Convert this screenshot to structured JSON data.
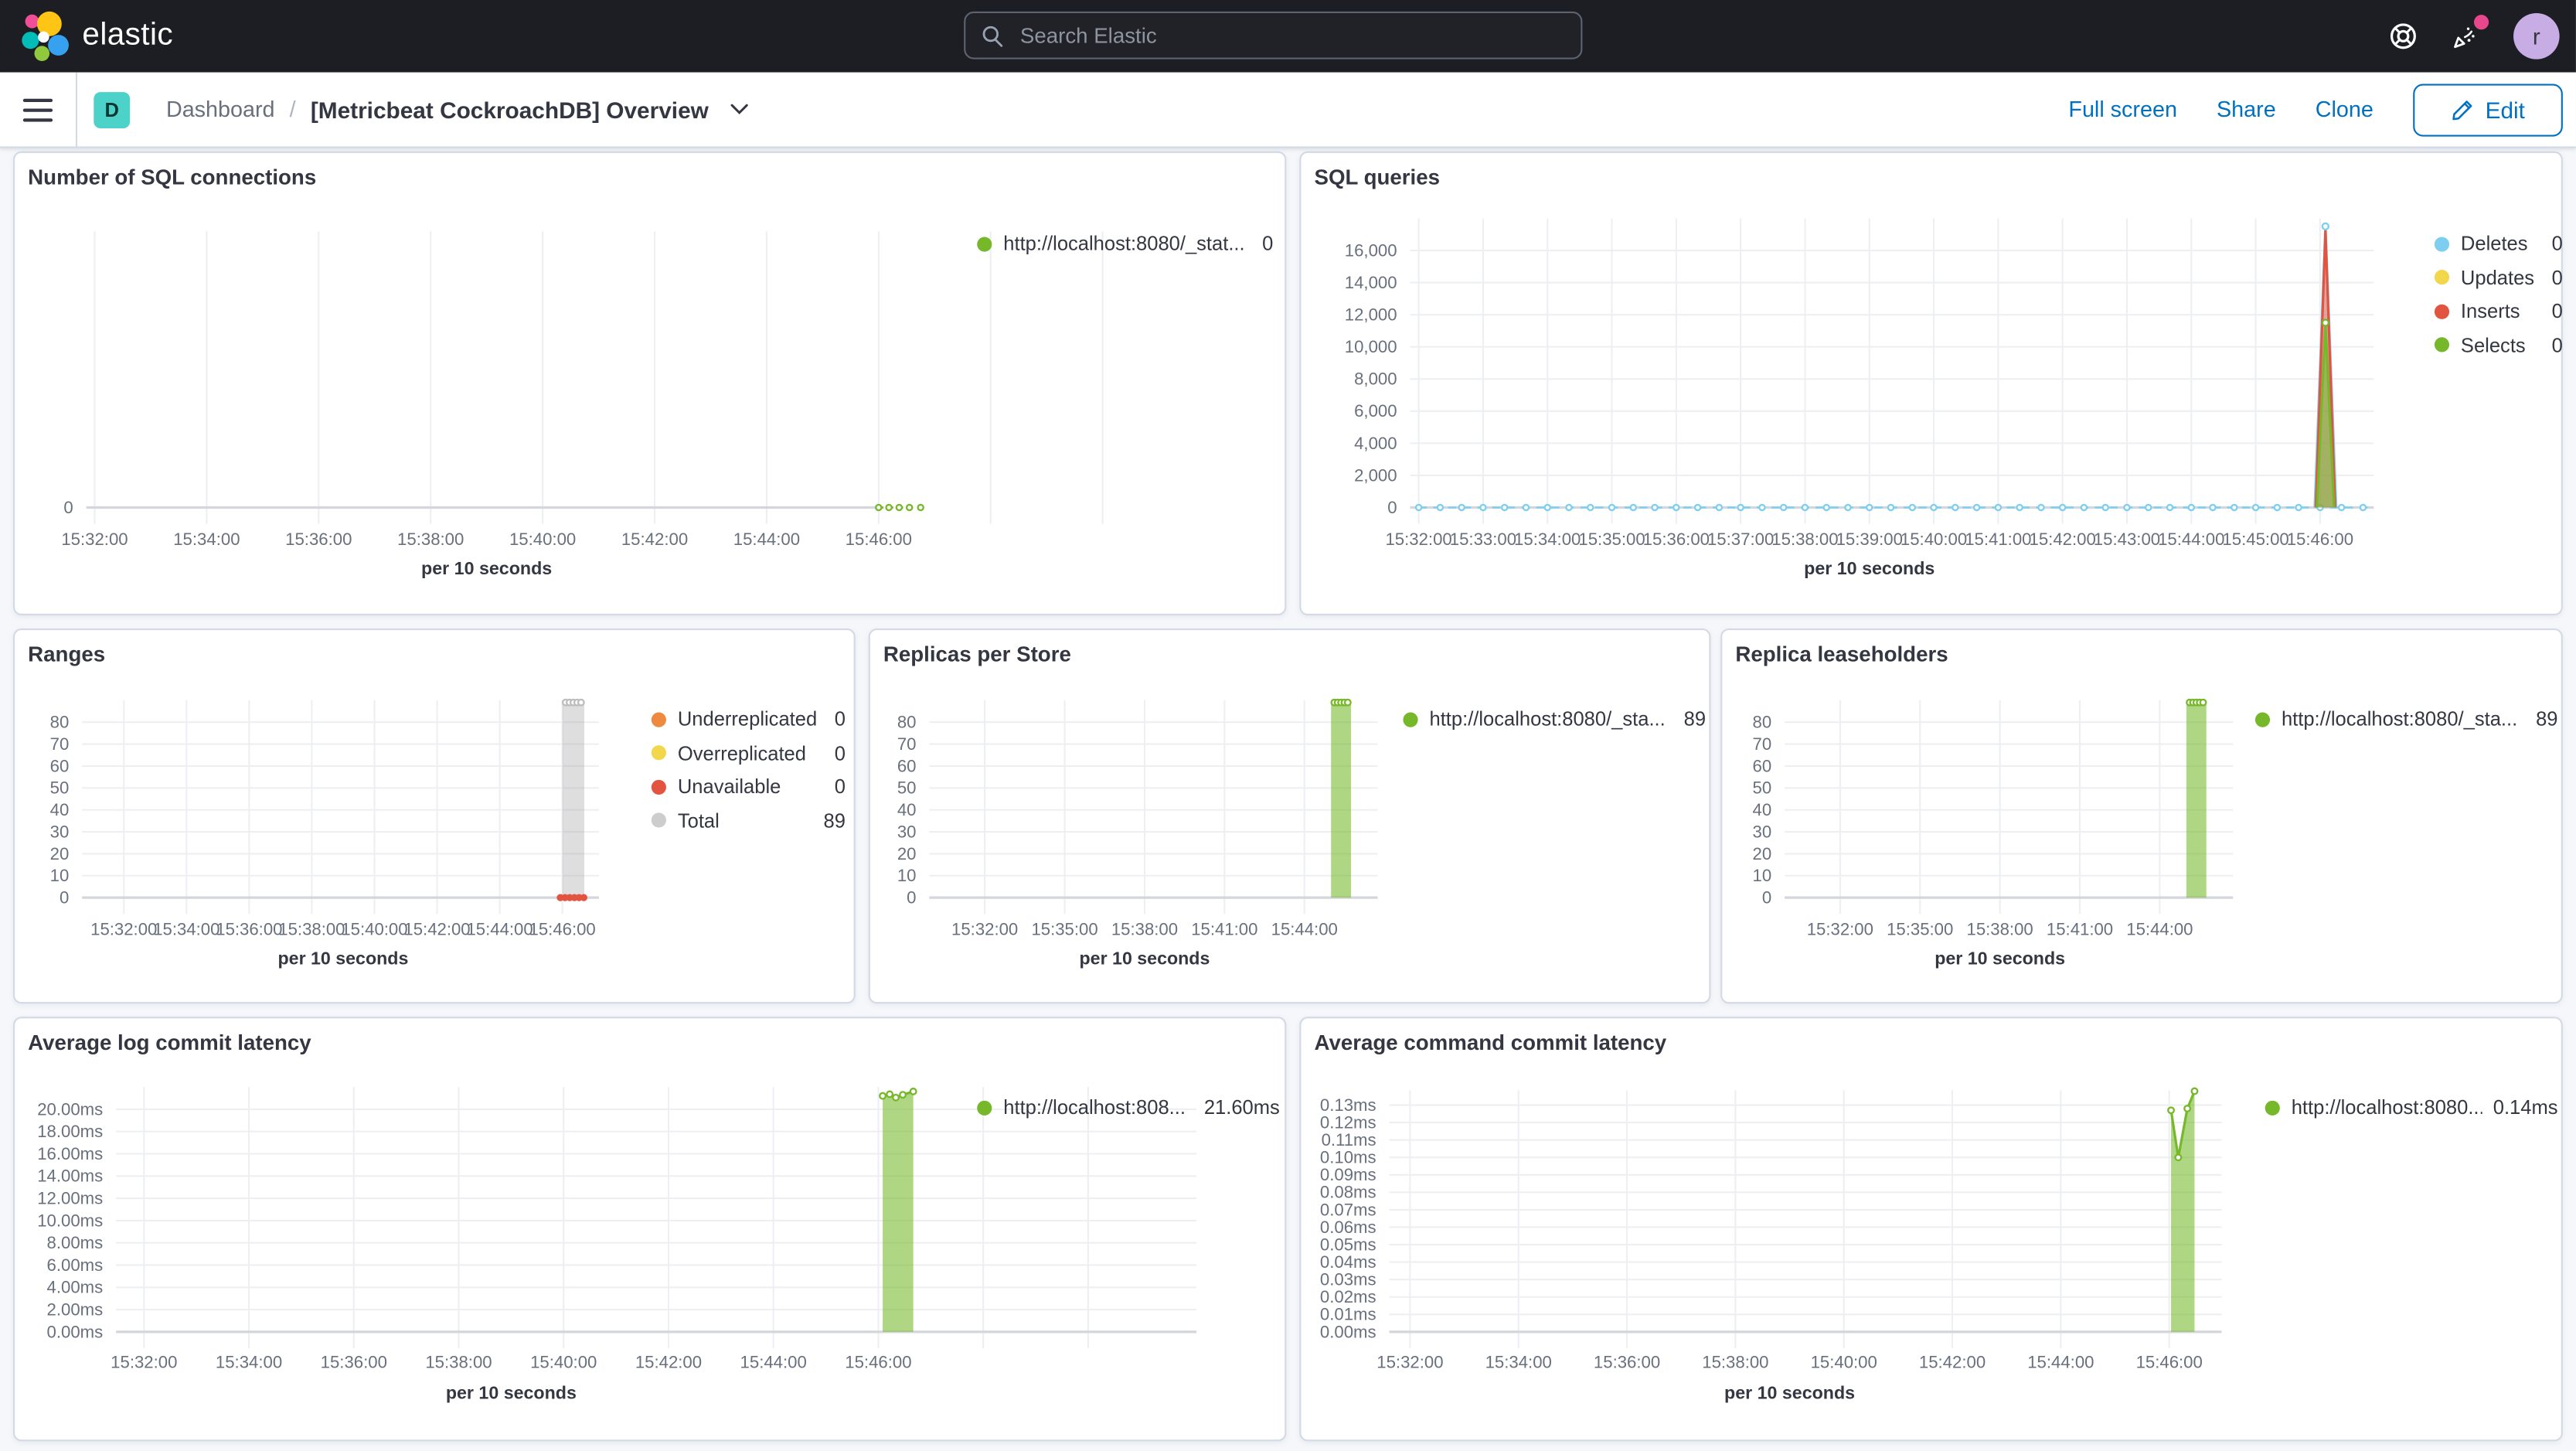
{
  "page": {
    "header": {
      "logo_text": "elastic",
      "search_placeholder": "Search Elastic",
      "avatar_initial": "r"
    },
    "toolbar": {
      "space_initial": "D",
      "breadcrumb_root": "Dashboard",
      "breadcrumb_separator": "/",
      "title": "[Metricbeat CockroachDB] Overview",
      "full_screen": "Full screen",
      "share": "Share",
      "clone": "Clone",
      "edit": "Edit"
    }
  },
  "chart_data": [
    {
      "type": "line",
      "title": "Number of SQL connections",
      "xlabel": "per 10 seconds",
      "x_domain": [
        "15:31:51",
        "15:51:41"
      ],
      "x_ticks": [
        "15:32:00",
        "15:34:00",
        "15:36:00",
        "15:38:00",
        "15:40:00",
        "15:42:00",
        "15:44:00",
        "15:46:00"
      ],
      "x_grid_extra": [
        "15:48:00",
        "15:50:00"
      ],
      "axis_line_to": "15:46:00",
      "y_domain": [
        0,
        1
      ],
      "y_ticks": [
        {
          "v": 0,
          "label": "0"
        }
      ],
      "series": [
        {
          "name": "http://localhost:8080/_stat...",
          "type": "dotline",
          "color": "#76b82a",
          "value": 0,
          "points": [
            [
              "15:46:00",
              0
            ],
            [
              "15:46:11",
              0
            ],
            [
              "15:46:22",
              0
            ],
            [
              "15:46:33",
              0
            ],
            [
              "15:46:45",
              0
            ]
          ]
        }
      ],
      "legend": [
        {
          "color": "#76b82a",
          "label": "http://localhost:8080/_stat...",
          "value": "0"
        }
      ]
    },
    {
      "type": "area",
      "title": "SQL queries",
      "xlabel": "per 10 seconds",
      "x_domain": [
        "15:31:52",
        "15:46:50"
      ],
      "x_ticks": [
        "15:32:00",
        "15:33:00",
        "15:34:00",
        "15:35:00",
        "15:36:00",
        "15:37:00",
        "15:38:00",
        "15:39:00",
        "15:40:00",
        "15:41:00",
        "15:42:00",
        "15:43:00",
        "15:44:00",
        "15:45:00",
        "15:46:00"
      ],
      "y_domain": [
        0,
        18000
      ],
      "y_ticks": [
        {
          "v": 0,
          "label": "0"
        },
        {
          "v": 2000,
          "label": "2,000"
        },
        {
          "v": 4000,
          "label": "4,000"
        },
        {
          "v": 6000,
          "label": "6,000"
        },
        {
          "v": 8000,
          "label": "8,000"
        },
        {
          "v": 10000,
          "label": "10,000"
        },
        {
          "v": 12000,
          "label": "12,000"
        },
        {
          "v": 14000,
          "label": "14,000"
        },
        {
          "v": 16000,
          "label": "16,000"
        }
      ],
      "series": [
        {
          "name": "Deletes",
          "type": "area",
          "color": "#7dcef0",
          "fill": "rgba(125,206,240,0.35)",
          "value": 0,
          "baseline": {
            "from": "15:32:00",
            "to": "15:46:45",
            "every": 20
          },
          "points": [
            [
              "15:45:55",
              0
            ],
            [
              "15:46:05",
              17500
            ],
            [
              "15:46:15",
              0
            ]
          ],
          "peak_marker": true
        },
        {
          "name": "Inserts",
          "type": "area",
          "color": "#e35440",
          "fill": "rgba(227,84,64,0.45)",
          "value": 0,
          "points": [
            [
              "15:45:56",
              0
            ],
            [
              "15:46:05",
              17250
            ],
            [
              "15:46:14",
              0
            ]
          ]
        },
        {
          "name": "Selects",
          "type": "area",
          "color": "#76b82a",
          "fill": "rgba(118,184,42,0.55)",
          "value": 0,
          "points": [
            [
              "15:45:57",
              0
            ],
            [
              "15:46:05",
              11500
            ],
            [
              "15:46:13",
              0
            ]
          ],
          "peak_marker": true
        },
        {
          "name": "Updates",
          "type": "line",
          "color": "#f2d64b",
          "value": 0,
          "points": []
        }
      ],
      "legend": [
        {
          "color": "#7dcef0",
          "label": "Deletes",
          "value": "0"
        },
        {
          "color": "#f2d64b",
          "label": "Updates",
          "value": "0"
        },
        {
          "color": "#e35440",
          "label": "Inserts",
          "value": "0"
        },
        {
          "color": "#76b82a",
          "label": "Selects",
          "value": "0"
        }
      ]
    },
    {
      "type": "bar",
      "title": "Ranges",
      "xlabel": "per 10 seconds",
      "x_domain": [
        "15:30:40",
        "15:47:10"
      ],
      "x_ticks": [
        "15:32:00",
        "15:34:00",
        "15:36:00",
        "15:38:00",
        "15:40:00",
        "15:42:00",
        "15:44:00",
        "15:46:00"
      ],
      "y_domain": [
        0,
        90
      ],
      "y_ticks": [
        {
          "v": 0,
          "label": "0"
        },
        {
          "v": 10,
          "label": "10"
        },
        {
          "v": 20,
          "label": "20"
        },
        {
          "v": 30,
          "label": "30"
        },
        {
          "v": 40,
          "label": "40"
        },
        {
          "v": 50,
          "label": "50"
        },
        {
          "v": 60,
          "label": "60"
        },
        {
          "v": 70,
          "label": "70"
        },
        {
          "v": 80,
          "label": "80"
        }
      ],
      "series": [
        {
          "name": "Total",
          "type": "bar",
          "color": "rgba(160,160,160,0.35)",
          "marker_color": "#bdbdbd",
          "from": "15:46:00",
          "to": "15:46:42",
          "value": 89,
          "top_markers": 5
        },
        {
          "name": "Unavailable",
          "type": "dots",
          "color": "#e35440",
          "value": 0,
          "points": [
            [
              "15:45:56",
              0
            ],
            [
              "15:46:05",
              0
            ],
            [
              "15:46:14",
              0
            ],
            [
              "15:46:23",
              0
            ],
            [
              "15:46:32",
              0
            ],
            [
              "15:46:41",
              0
            ]
          ]
        },
        {
          "name": "Underreplicated",
          "type": "line",
          "color": "#ee8a3d",
          "value": 0,
          "points": []
        },
        {
          "name": "Overreplicated",
          "type": "line",
          "color": "#f2d64b",
          "value": 0,
          "points": []
        }
      ],
      "legend": [
        {
          "color": "#ee8a3d",
          "label": "Underreplicated",
          "value": "0"
        },
        {
          "color": "#f2d64b",
          "label": "Overreplicated",
          "value": "0"
        },
        {
          "color": "#e35440",
          "label": "Unavailable",
          "value": "0"
        },
        {
          "color": "#cdcdcd",
          "label": "Total",
          "value": "89"
        }
      ]
    },
    {
      "type": "bar",
      "title": "Replicas per Store",
      "xlabel": "per 10 seconds",
      "x_domain": [
        "15:29:55",
        "15:46:45"
      ],
      "x_ticks": [
        "15:32:00",
        "15:35:00",
        "15:38:00",
        "15:41:00",
        "15:44:00"
      ],
      "y_domain": [
        0,
        90
      ],
      "y_ticks": [
        {
          "v": 0,
          "label": "0"
        },
        {
          "v": 10,
          "label": "10"
        },
        {
          "v": 20,
          "label": "20"
        },
        {
          "v": 30,
          "label": "30"
        },
        {
          "v": 40,
          "label": "40"
        },
        {
          "v": 50,
          "label": "50"
        },
        {
          "v": 60,
          "label": "60"
        },
        {
          "v": 70,
          "label": "70"
        },
        {
          "v": 80,
          "label": "80"
        }
      ],
      "series": [
        {
          "name": "http://localhost:8080/_sta...",
          "type": "bar",
          "color": "rgba(118,184,42,0.58)",
          "marker_color": "#76b82a",
          "from": "15:45:00",
          "to": "15:45:45",
          "value": 89,
          "top_markers": 5
        }
      ],
      "legend": [
        {
          "color": "#76b82a",
          "label": "http://localhost:8080/_sta...",
          "value": "89"
        }
      ]
    },
    {
      "type": "bar",
      "title": "Replica leaseholders",
      "xlabel": "per 10 seconds",
      "x_domain": [
        "15:29:55",
        "15:46:45"
      ],
      "x_ticks": [
        "15:32:00",
        "15:35:00",
        "15:38:00",
        "15:41:00",
        "15:44:00"
      ],
      "y_domain": [
        0,
        90
      ],
      "y_ticks": [
        {
          "v": 0,
          "label": "0"
        },
        {
          "v": 10,
          "label": "10"
        },
        {
          "v": 20,
          "label": "20"
        },
        {
          "v": 30,
          "label": "30"
        },
        {
          "v": 40,
          "label": "40"
        },
        {
          "v": 50,
          "label": "50"
        },
        {
          "v": 60,
          "label": "60"
        },
        {
          "v": 70,
          "label": "70"
        },
        {
          "v": 80,
          "label": "80"
        }
      ],
      "series": [
        {
          "name": "http://localhost:8080/_sta...",
          "type": "bar",
          "color": "rgba(118,184,42,0.58)",
          "marker_color": "#76b82a",
          "from": "15:45:00",
          "to": "15:45:45",
          "value": 89,
          "top_markers": 5
        }
      ],
      "legend": [
        {
          "color": "#76b82a",
          "label": "http://localhost:8080/_sta...",
          "value": "89"
        }
      ]
    },
    {
      "type": "area",
      "title": "Average log commit latency",
      "xlabel": "per 10 seconds",
      "x_domain": [
        "15:31:28",
        "15:52:04"
      ],
      "x_ticks": [
        "15:32:00",
        "15:34:00",
        "15:36:00",
        "15:38:00",
        "15:40:00",
        "15:42:00",
        "15:44:00",
        "15:46:00"
      ],
      "x_grid_extra": [
        "15:48:00",
        "15:50:00"
      ],
      "y_domain": [
        0,
        22
      ],
      "y_ticks": [
        {
          "v": 0,
          "label": "0.00ms"
        },
        {
          "v": 2,
          "label": "2.00ms"
        },
        {
          "v": 4,
          "label": "4.00ms"
        },
        {
          "v": 6,
          "label": "6.00ms"
        },
        {
          "v": 8,
          "label": "8.00ms"
        },
        {
          "v": 10,
          "label": "10.00ms"
        },
        {
          "v": 12,
          "label": "12.00ms"
        },
        {
          "v": 14,
          "label": "14.00ms"
        },
        {
          "v": 16,
          "label": "16.00ms"
        },
        {
          "v": 18,
          "label": "18.00ms"
        },
        {
          "v": 20,
          "label": "20.00ms"
        }
      ],
      "series": [
        {
          "name": "http://localhost:808...",
          "type": "area",
          "color": "#76b82a",
          "fill": "rgba(118,184,42,0.58)",
          "value": "21.60ms",
          "markers": "all",
          "points": [
            [
              "15:46:05",
              21.2
            ],
            [
              "15:46:13",
              21.35
            ],
            [
              "15:46:20",
              21.05
            ],
            [
              "15:46:28",
              21.3
            ],
            [
              "15:46:40",
              21.6
            ]
          ]
        }
      ],
      "legend": [
        {
          "color": "#76b82a",
          "label": "http://localhost:808...",
          "value": "21.60ms"
        }
      ]
    },
    {
      "type": "area",
      "title": "Average command commit latency",
      "xlabel": "per 10 seconds",
      "x_domain": [
        "15:31:37",
        "15:46:58"
      ],
      "x_ticks": [
        "15:32:00",
        "15:34:00",
        "15:36:00",
        "15:38:00",
        "15:40:00",
        "15:42:00",
        "15:44:00",
        "15:46:00"
      ],
      "y_domain": [
        0,
        0.1385
      ],
      "y_ticks": [
        {
          "v": 0.0,
          "label": "0.00ms"
        },
        {
          "v": 0.01,
          "label": "0.01ms"
        },
        {
          "v": 0.02,
          "label": "0.02ms"
        },
        {
          "v": 0.03,
          "label": "0.03ms"
        },
        {
          "v": 0.04,
          "label": "0.04ms"
        },
        {
          "v": 0.05,
          "label": "0.05ms"
        },
        {
          "v": 0.06,
          "label": "0.06ms"
        },
        {
          "v": 0.07,
          "label": "0.07ms"
        },
        {
          "v": 0.08,
          "label": "0.08ms"
        },
        {
          "v": 0.09,
          "label": "0.09ms"
        },
        {
          "v": 0.1,
          "label": "0.10ms"
        },
        {
          "v": 0.11,
          "label": "0.11ms"
        },
        {
          "v": 0.12,
          "label": "0.12ms"
        },
        {
          "v": 0.13,
          "label": "0.13ms"
        }
      ],
      "series": [
        {
          "name": "http://localhost:8080...",
          "type": "area",
          "color": "#76b82a",
          "fill": "rgba(118,184,42,0.58)",
          "value": "0.14ms",
          "markers": "all",
          "points": [
            [
              "15:46:02",
              0.127
            ],
            [
              "15:46:10",
              0.1
            ],
            [
              "15:46:20",
              0.128
            ],
            [
              "15:46:28",
              0.138
            ]
          ]
        }
      ],
      "legend": [
        {
          "color": "#76b82a",
          "label": "http://localhost:8080...",
          "value": "0.14ms"
        }
      ]
    }
  ]
}
